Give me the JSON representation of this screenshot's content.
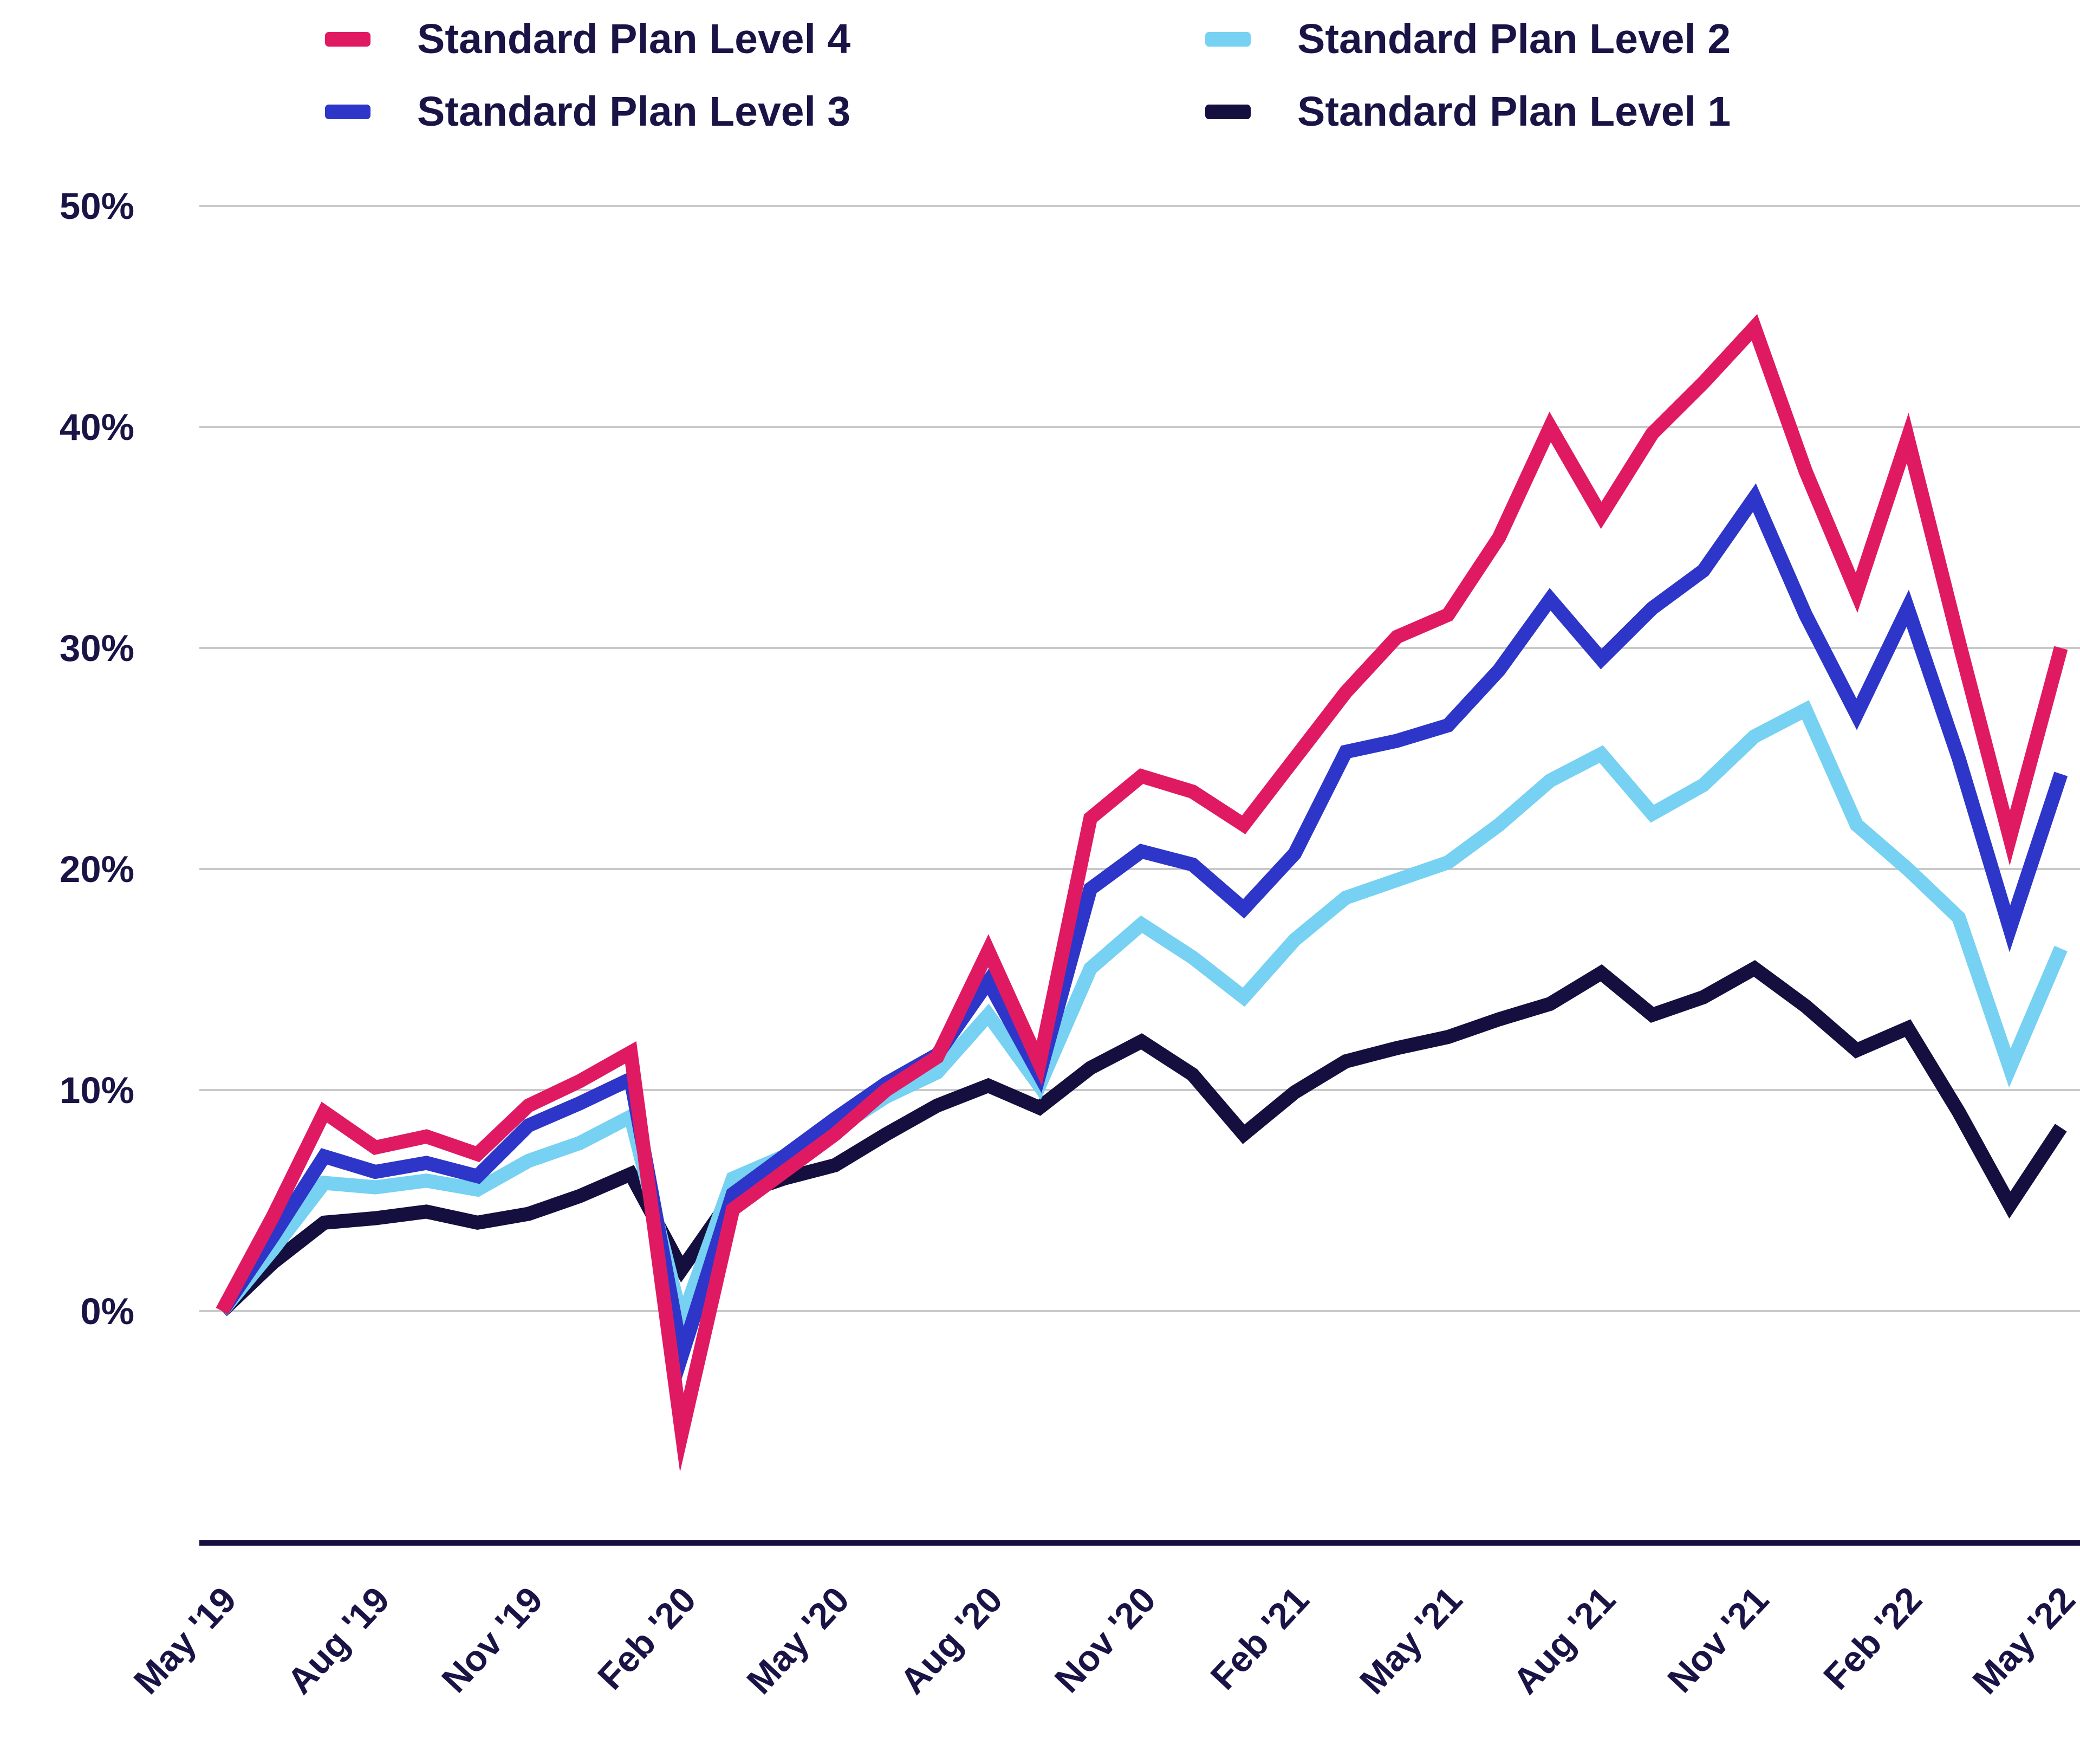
{
  "legend": {
    "items": [
      {
        "id": "level4",
        "label": "Standard Plan Level 4",
        "color": "#e01a62"
      },
      {
        "id": "level2",
        "label": "Standard Plan Level 2",
        "color": "#76d1f2"
      },
      {
        "id": "level3",
        "label": "Standard Plan Level 3",
        "color": "#2d36c8"
      },
      {
        "id": "level1",
        "label": "Standard Plan Level 1",
        "color": "#140f3e"
      }
    ]
  },
  "chart_data": {
    "type": "line",
    "title": "",
    "xlabel": "",
    "ylabel": "",
    "x": [
      "May '19",
      "Jun '19",
      "Jul '19",
      "Aug '19",
      "Sep '19",
      "Oct '19",
      "Nov '19",
      "Dec '19",
      "Jan '20",
      "Feb '20",
      "Mar '20",
      "Apr '20",
      "May '20",
      "Jun '20",
      "Jul '20",
      "Aug '20",
      "Sep '20",
      "Oct '20",
      "Nov '20",
      "Dec '20",
      "Jan '21",
      "Feb '21",
      "Mar '21",
      "Apr '21",
      "May '21",
      "Jun '21",
      "Jul '21",
      "Aug '21",
      "Sep '21",
      "Oct '21",
      "Nov '21",
      "Dec '21",
      "Jan '22",
      "Feb '22",
      "Mar '22",
      "Apr '22",
      "May '22"
    ],
    "x_tick_labels": [
      "May '19",
      "Aug '19",
      "Nov '19",
      "Feb '20",
      "May '20",
      "Aug '20",
      "Nov '20",
      "Feb '21",
      "May '21",
      "Aug '21",
      "Nov '21",
      "Feb '22",
      "May '22"
    ],
    "x_tick_every": 3,
    "y_ticks": [
      {
        "value": 0,
        "label": "0%"
      },
      {
        "value": 10,
        "label": "10%"
      },
      {
        "value": 20,
        "label": "20%"
      },
      {
        "value": 30,
        "label": "30%"
      },
      {
        "value": 40,
        "label": "40%"
      },
      {
        "value": 50,
        "label": "50%"
      }
    ],
    "ylim": [
      -10.5,
      52
    ],
    "grid": true,
    "legend_position": "top",
    "series": [
      {
        "name": "Standard Plan Level 1",
        "color": "#140f3e",
        "values": [
          0,
          2.2,
          4,
          4.2,
          4.5,
          4,
          4.4,
          5.2,
          6.2,
          1.9,
          5.2,
          6,
          6.6,
          8,
          9.3,
          10.2,
          9.2,
          11,
          12.2,
          10.7,
          8,
          9.9,
          11.3,
          11.9,
          12.4,
          13.2,
          13.9,
          15.3,
          13.4,
          14.2,
          15.5,
          13.8,
          11.8,
          12.8,
          9,
          4.8,
          8.3
        ]
      },
      {
        "name": "Standard Plan Level 2",
        "color": "#76d1f2",
        "values": [
          0,
          2.8,
          5.8,
          5.6,
          5.9,
          5.5,
          6.8,
          7.6,
          8.8,
          -0.4,
          6,
          7,
          8.2,
          9.7,
          10.8,
          13.4,
          10.2,
          15.5,
          17.5,
          16,
          14.2,
          16.8,
          18.7,
          19.5,
          20.3,
          22,
          24,
          25.2,
          22.5,
          23.8,
          26,
          27.2,
          22,
          20,
          17.8,
          11,
          16.4
        ]
      },
      {
        "name": "Standard Plan Level 3",
        "color": "#2d36c8",
        "values": [
          0,
          3.4,
          7,
          6.3,
          6.7,
          6.1,
          8.4,
          9.4,
          10.5,
          -2,
          5.3,
          7,
          8.7,
          10.3,
          11.6,
          14.9,
          10.7,
          19.1,
          20.8,
          20.2,
          18.2,
          20.7,
          25.3,
          25.8,
          26.5,
          29,
          32.2,
          29.5,
          31.8,
          33.5,
          36.8,
          31.5,
          27,
          31.8,
          25,
          17.3,
          24.3
        ]
      },
      {
        "name": "Standard Plan Level 4",
        "color": "#e01a62",
        "values": [
          0,
          4.3,
          9,
          7.4,
          7.9,
          7.1,
          9.3,
          10.4,
          11.7,
          -5.5,
          4.6,
          6.3,
          8,
          10,
          11.5,
          16.3,
          11.2,
          22.3,
          24.2,
          23.5,
          22,
          25,
          28,
          30.5,
          31.5,
          35,
          40,
          36,
          39.7,
          42,
          44.5,
          38,
          32.5,
          39.5,
          30.3,
          21.4,
          30
        ]
      }
    ],
    "colors": {
      "text": "#1a1446",
      "gridline": "#c9c9c9",
      "axis_line": "#16103f",
      "background": "#ffffff"
    }
  }
}
